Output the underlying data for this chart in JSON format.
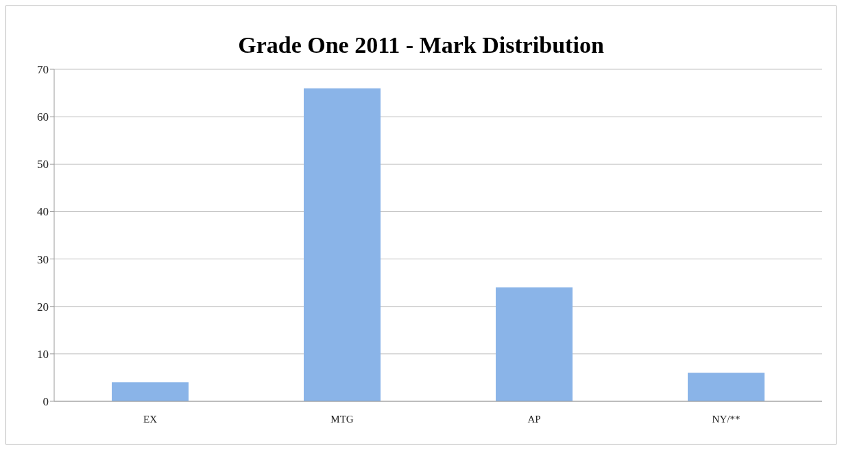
{
  "chart_data": {
    "type": "bar",
    "title": "Grade One 2011 - Mark Distribution",
    "categories": [
      "EX",
      "MTG",
      "AP",
      "NY/**"
    ],
    "values": [
      4,
      66,
      24,
      6
    ],
    "color": "#8ab4e8",
    "ylim": [
      0,
      70
    ],
    "yticks": [
      0,
      10,
      20,
      30,
      40,
      50,
      60,
      70
    ],
    "grid": "y"
  }
}
